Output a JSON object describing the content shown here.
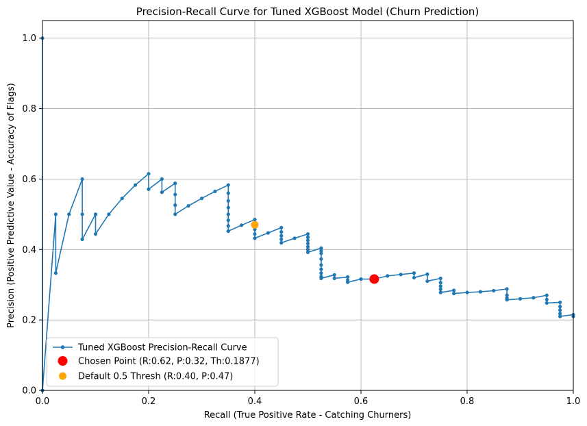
{
  "chart_data": {
    "type": "line",
    "title": "Precision-Recall Curve for Tuned XGBoost Model (Churn Prediction)",
    "xlabel": "Recall (True Positive Rate - Catching Churners)",
    "ylabel": "Precision (Positive Predictive Value - Accuracy of Flags)",
    "xlim": [
      0.0,
      1.0
    ],
    "ylim": [
      0.0,
      1.05
    ],
    "xticks": [
      "0.0",
      "0.2",
      "0.4",
      "0.6",
      "0.8",
      "1.0"
    ],
    "yticks": [
      "0.0",
      "0.2",
      "0.4",
      "0.6",
      "0.8",
      "1.0"
    ],
    "grid": true,
    "legend_position": "lower-left",
    "series": [
      {
        "name": "Tuned XGBoost Precision-Recall Curve",
        "color": "#1f77b4",
        "marker": "dot",
        "x": [
          0.0,
          0.0,
          0.025,
          0.025,
          0.05,
          0.075,
          0.075,
          0.075,
          0.1,
          0.1,
          0.125,
          0.15,
          0.175,
          0.2,
          0.2,
          0.225,
          0.225,
          0.25,
          0.25,
          0.25,
          0.25,
          0.275,
          0.3,
          0.325,
          0.35,
          0.35,
          0.35,
          0.35,
          0.35,
          0.35,
          0.35,
          0.35,
          0.35,
          0.375,
          0.4,
          0.4,
          0.4,
          0.4,
          0.425,
          0.45,
          0.45,
          0.45,
          0.45,
          0.45,
          0.475,
          0.5,
          0.5,
          0.5,
          0.5,
          0.5,
          0.5,
          0.5,
          0.525,
          0.525,
          0.525,
          0.525,
          0.525,
          0.525,
          0.525,
          0.525,
          0.525,
          0.55,
          0.55,
          0.575,
          0.575,
          0.575,
          0.6,
          0.625,
          0.65,
          0.675,
          0.7,
          0.7,
          0.725,
          0.725,
          0.75,
          0.75,
          0.75,
          0.75,
          0.75,
          0.775,
          0.775,
          0.8,
          0.825,
          0.85,
          0.875,
          0.875,
          0.875,
          0.875,
          0.9,
          0.925,
          0.95,
          0.95,
          0.95,
          0.975,
          0.975,
          0.975,
          0.975,
          0.975,
          1.0,
          1.0
        ],
        "y": [
          1.0,
          0.0,
          0.5,
          0.333,
          0.5,
          0.6,
          0.5,
          0.429,
          0.5,
          0.444,
          0.5,
          0.545,
          0.583,
          0.615,
          0.571,
          0.6,
          0.5625,
          0.588,
          0.556,
          0.526,
          0.5,
          0.524,
          0.545,
          0.565,
          0.583,
          0.56,
          0.538,
          0.519,
          0.5,
          0.483,
          0.467,
          0.452,
          0.452,
          0.469,
          0.485,
          0.457,
          0.444,
          0.432,
          0.447,
          0.462,
          0.45,
          0.439,
          0.429,
          0.419,
          0.432,
          0.444,
          0.435,
          0.426,
          0.417,
          0.408,
          0.4,
          0.392,
          0.404,
          0.396,
          0.389,
          0.373,
          0.356,
          0.344,
          0.333,
          0.323,
          0.318,
          0.328,
          0.318,
          0.322,
          0.313,
          0.307,
          0.316,
          0.316,
          0.325,
          0.329,
          0.333,
          0.32,
          0.33,
          0.31,
          0.318,
          0.306,
          0.296,
          0.287,
          0.278,
          0.284,
          0.275,
          0.278,
          0.28,
          0.283,
          0.288,
          0.27,
          0.262,
          0.257,
          0.26,
          0.263,
          0.27,
          0.258,
          0.248,
          0.25,
          0.238,
          0.228,
          0.218,
          0.21,
          0.215,
          0.21
        ]
      }
    ],
    "markers": [
      {
        "name": "Chosen Point (R:0.62, P:0.32, Th:0.1877)",
        "x": 0.625,
        "y": 0.316,
        "color": "#ff0000",
        "size": "large"
      },
      {
        "name": "Default 0.5 Thresh (R:0.40, P:0.47)",
        "x": 0.4,
        "y": 0.47,
        "color": "#ffa500",
        "size": "medium"
      }
    ]
  }
}
